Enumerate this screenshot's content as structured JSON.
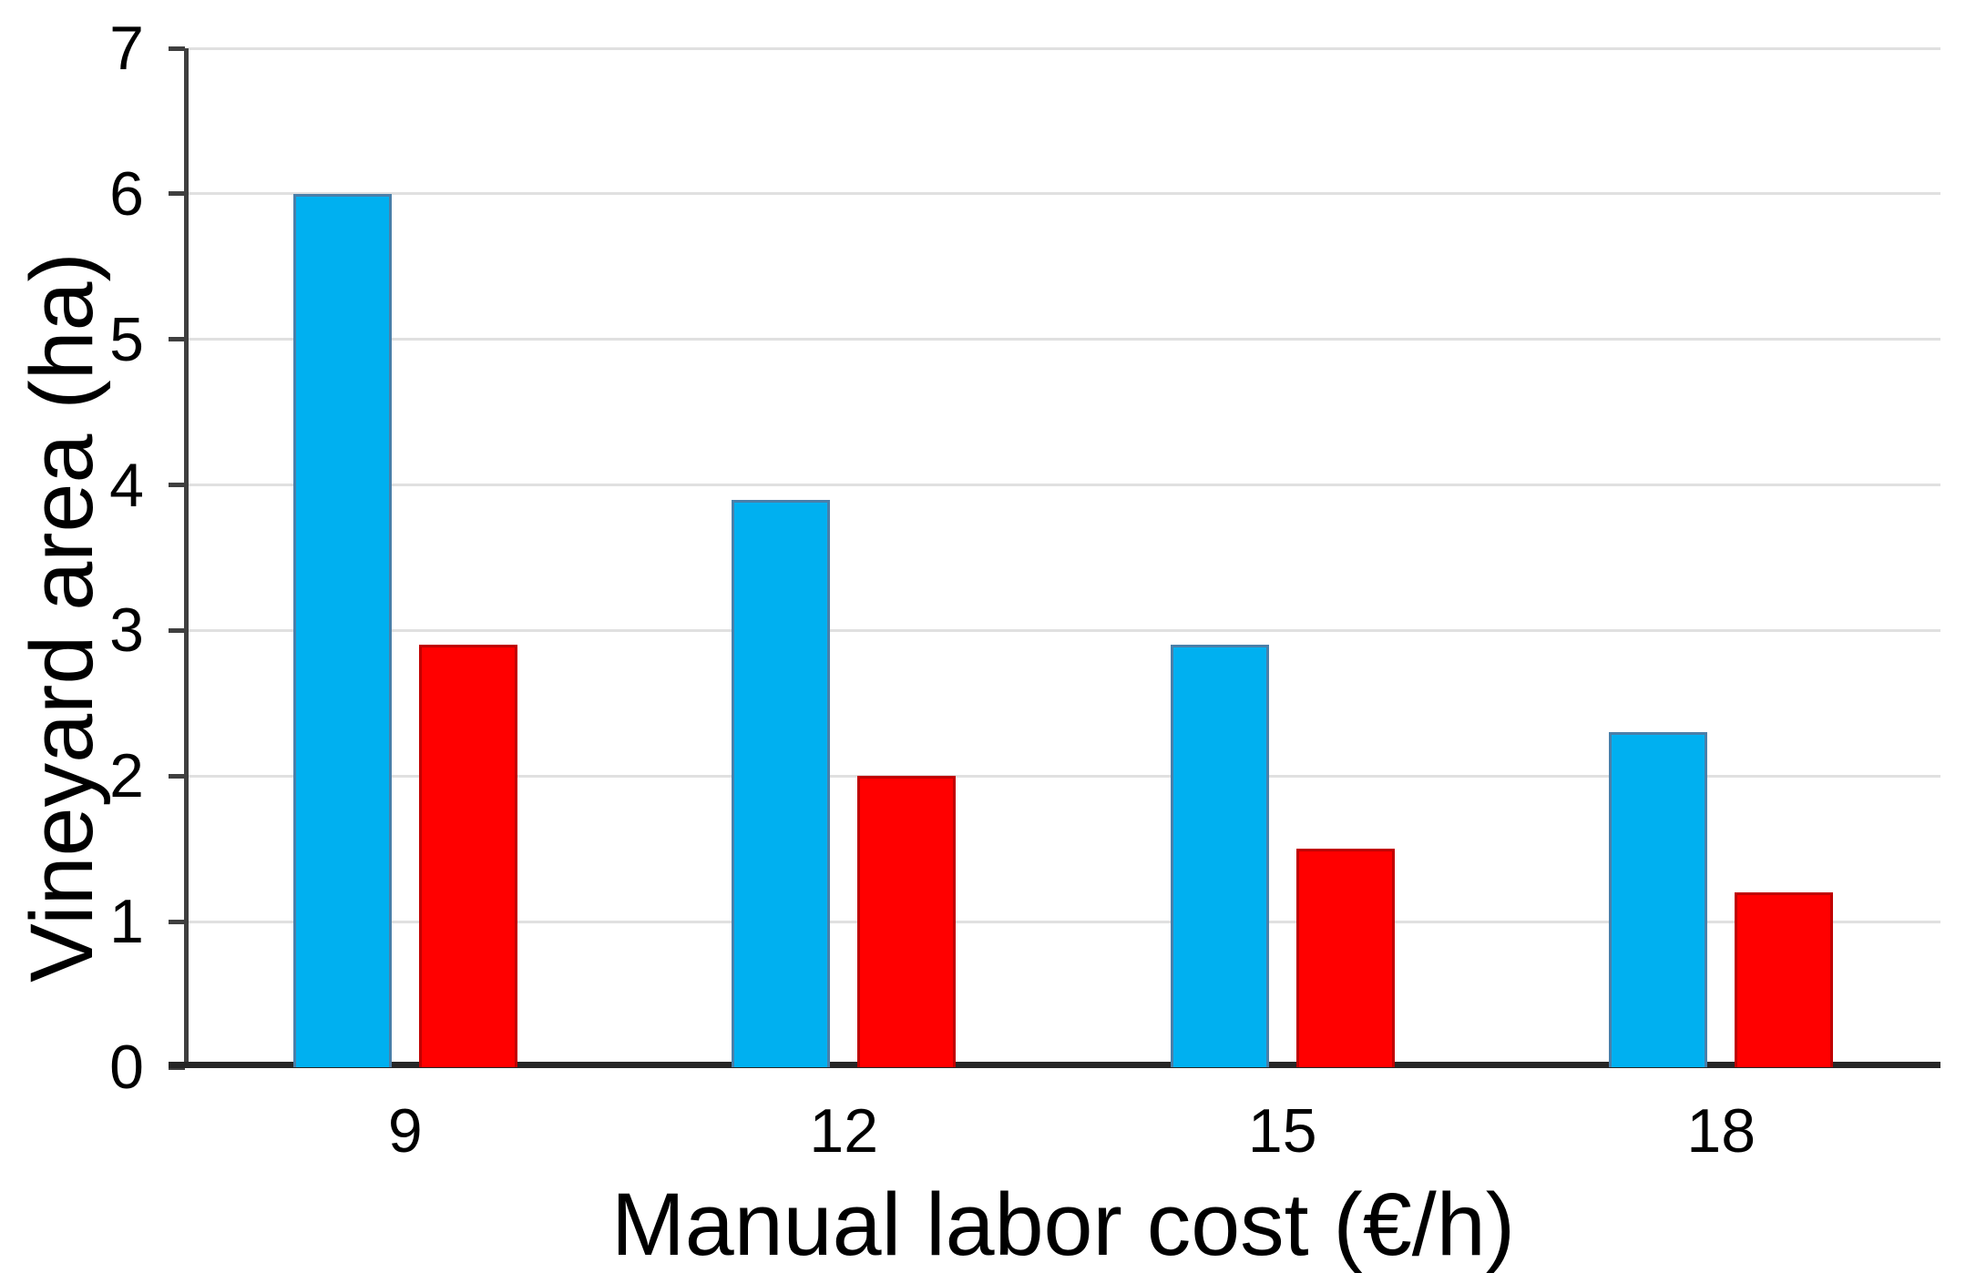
{
  "chart_data": {
    "type": "bar",
    "title": "",
    "xlabel": "Manual labor cost (€/h)",
    "ylabel": "Vineyard area (ha)",
    "categories": [
      "9",
      "12",
      "15",
      "18"
    ],
    "series": [
      {
        "name": "blue-series",
        "color": "#00B0F0",
        "border_color": "#4A7FA9",
        "values": [
          6.0,
          3.9,
          2.9,
          2.3
        ]
      },
      {
        "name": "red-series",
        "color": "#FF0000",
        "border_color": "#C00000",
        "values": [
          2.9,
          2.0,
          1.5,
          1.2
        ]
      }
    ],
    "ylim": [
      0,
      7
    ],
    "yticks": [
      0,
      1,
      2,
      3,
      4,
      5,
      6,
      7
    ],
    "grid": "horizontal-on",
    "legend_position": "none",
    "colors": {
      "gridline": "#E0E0E0",
      "y_axis_line": "#3F3F3F",
      "x_axis_line": "#262626",
      "tick": "#3F3F3F",
      "text": "#000000",
      "background": "#FFFFFF"
    }
  }
}
